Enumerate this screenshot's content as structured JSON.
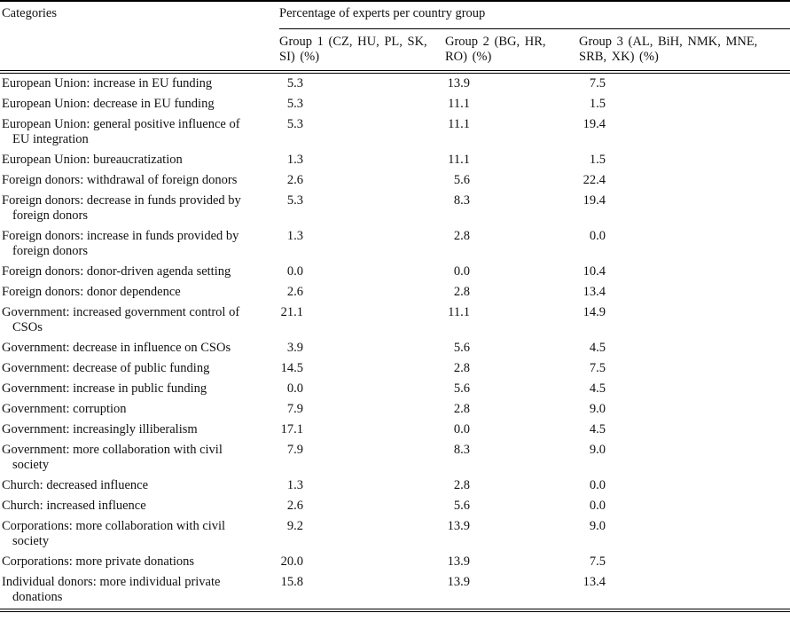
{
  "table": {
    "categories_header": "Categories",
    "span_header": "Percentage of experts per country group",
    "group_headers": [
      "Group 1 (CZ, HU, PL, SK,\nSI) (%)",
      "Group 2 (BG, HR,\nRO) (%)",
      "Group 3 (AL, BiH, NMK, MNE,\nSRB, XK) (%)"
    ],
    "rows": [
      {
        "category": "European Union: increase in EU funding",
        "g1": "5.3",
        "g2": "13.9",
        "g3": "7.5"
      },
      {
        "category": "European Union: decrease in EU funding",
        "g1": "5.3",
        "g2": "11.1",
        "g3": "1.5"
      },
      {
        "category": "European Union: general positive influence of\nEU integration",
        "g1": "5.3",
        "g2": "11.1",
        "g3": "19.4"
      },
      {
        "category": "European Union: bureaucratization",
        "g1": "1.3",
        "g2": "11.1",
        "g3": "1.5"
      },
      {
        "category": "Foreign donors: withdrawal of foreign donors",
        "g1": "2.6",
        "g2": "5.6",
        "g3": "22.4"
      },
      {
        "category": "Foreign donors: decrease in funds provided by\nforeign donors",
        "g1": "5.3",
        "g2": "8.3",
        "g3": "19.4"
      },
      {
        "category": "Foreign donors: increase in funds provided by\nforeign donors",
        "g1": "1.3",
        "g2": "2.8",
        "g3": "0.0"
      },
      {
        "category": "Foreign donors: donor-driven agenda setting",
        "g1": "0.0",
        "g2": "0.0",
        "g3": "10.4"
      },
      {
        "category": "Foreign donors: donor dependence",
        "g1": "2.6",
        "g2": "2.8",
        "g3": "13.4"
      },
      {
        "category": "Government: increased government control of\nCSOs",
        "g1": "21.1",
        "g2": "11.1",
        "g3": "14.9"
      },
      {
        "category": "Government: decrease in influence on CSOs",
        "g1": "3.9",
        "g2": "5.6",
        "g3": "4.5"
      },
      {
        "category": "Government: decrease of public funding",
        "g1": "14.5",
        "g2": "2.8",
        "g3": "7.5"
      },
      {
        "category": "Government: increase in public funding",
        "g1": "0.0",
        "g2": "5.6",
        "g3": "4.5"
      },
      {
        "category": "Government: corruption",
        "g1": "7.9",
        "g2": "2.8",
        "g3": "9.0"
      },
      {
        "category": "Government: increasingly illiberalism",
        "g1": "17.1",
        "g2": "0.0",
        "g3": "4.5"
      },
      {
        "category": "Government: more collaboration with civil\nsociety",
        "g1": "7.9",
        "g2": "8.3",
        "g3": "9.0"
      },
      {
        "category": "Church: decreased influence",
        "g1": "1.3",
        "g2": "2.8",
        "g3": "0.0"
      },
      {
        "category": "Church: increased influence",
        "g1": "2.6",
        "g2": "5.6",
        "g3": "0.0"
      },
      {
        "category": "Corporations: more collaboration with civil\nsociety",
        "g1": "9.2",
        "g2": "13.9",
        "g3": "9.0"
      },
      {
        "category": "Corporations: more private donations",
        "g1": "20.0",
        "g2": "13.9",
        "g3": "7.5"
      },
      {
        "category": "Individual donors: more individual private\ndonations",
        "g1": "15.8",
        "g2": "13.9",
        "g3": "13.4"
      }
    ]
  }
}
